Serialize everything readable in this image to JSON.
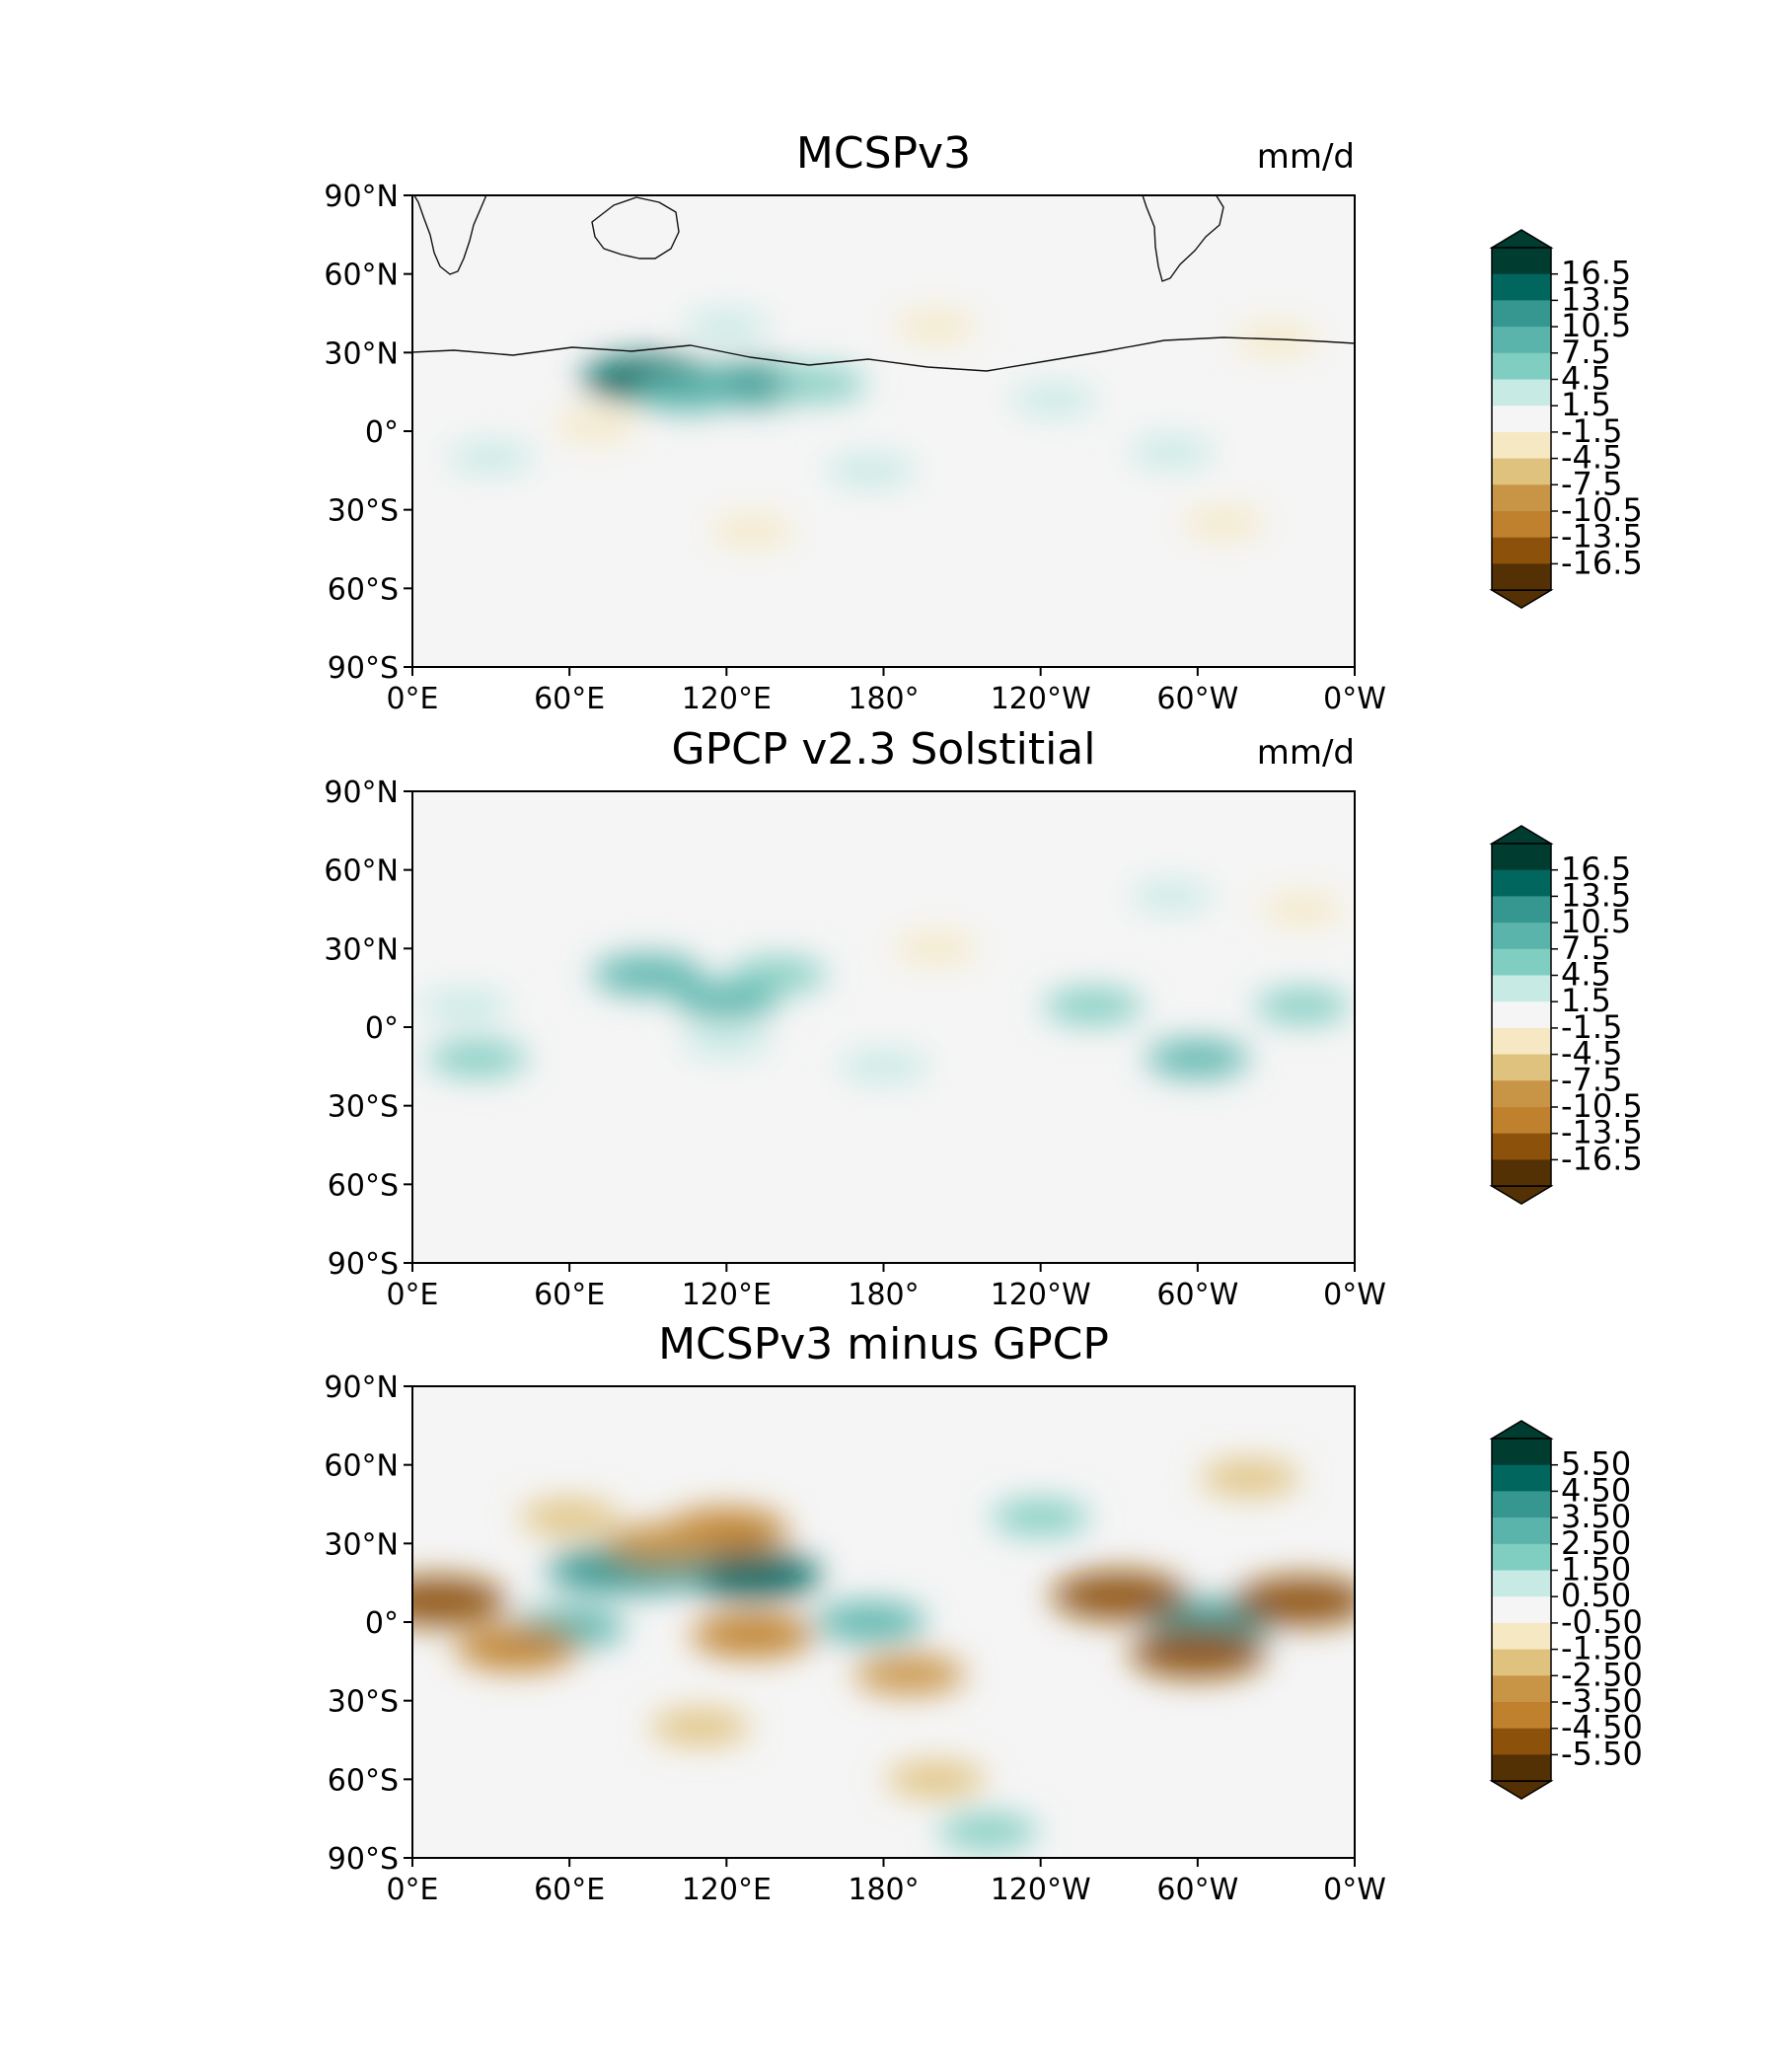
{
  "chart_data": [
    {
      "type": "heatmap",
      "title": "MCSPv3",
      "units_label": "mm/d",
      "x_ticks": [
        "0°E",
        "60°E",
        "120°E",
        "180°",
        "120°W",
        "60°W",
        "0°W"
      ],
      "y_ticks": [
        "90°N",
        "60°N",
        "30°N",
        "0°",
        "30°S",
        "60°S",
        "90°S"
      ],
      "xlim": [
        0,
        360
      ],
      "ylim": [
        -90,
        90
      ],
      "colorbar": {
        "extend": "both",
        "labels": [
          "16.5",
          "13.5",
          "10.5",
          "7.5",
          "4.5",
          "1.5",
          "-1.5",
          "-4.5",
          "-7.5",
          "-10.5",
          "-13.5",
          "-16.5"
        ]
      },
      "anomalies": [
        {
          "lon": 90,
          "lat": 20,
          "value": 14
        },
        {
          "lon": 130,
          "lat": 18,
          "value": 11
        },
        {
          "lon": 105,
          "lat": 15,
          "value": 8
        },
        {
          "lon": 155,
          "lat": 18,
          "value": 5
        },
        {
          "lon": 120,
          "lat": 40,
          "value": 3
        },
        {
          "lon": 175,
          "lat": -15,
          "value": 4
        },
        {
          "lon": 30,
          "lat": -10,
          "value": 3
        },
        {
          "lon": 290,
          "lat": -8,
          "value": 3
        },
        {
          "lon": 245,
          "lat": 12,
          "value": 3
        },
        {
          "lon": 200,
          "lat": 40,
          "value": -2
        },
        {
          "lon": 330,
          "lat": 35,
          "value": -2
        },
        {
          "lon": 310,
          "lat": -35,
          "value": -2
        },
        {
          "lon": 130,
          "lat": -38,
          "value": -2
        },
        {
          "lon": 70,
          "lat": 2,
          "value": -2
        }
      ]
    },
    {
      "type": "heatmap",
      "title": "GPCP v2.3 Solstitial",
      "units_label": "mm/d",
      "x_ticks": [
        "0°E",
        "60°E",
        "120°E",
        "180°",
        "120°W",
        "60°W",
        "0°W"
      ],
      "y_ticks": [
        "90°N",
        "60°N",
        "30°N",
        "0°",
        "30°S",
        "60°S",
        "90°S"
      ],
      "xlim": [
        0,
        360
      ],
      "ylim": [
        -90,
        90
      ],
      "colorbar": {
        "extend": "both",
        "labels": [
          "16.5",
          "13.5",
          "10.5",
          "7.5",
          "4.5",
          "1.5",
          "-1.5",
          "-4.5",
          "-7.5",
          "-10.5",
          "-13.5",
          "-16.5"
        ]
      },
      "anomalies": [
        {
          "lon": 90,
          "lat": 20,
          "value": 9
        },
        {
          "lon": 120,
          "lat": 10,
          "value": 7
        },
        {
          "lon": 140,
          "lat": 20,
          "value": 5
        },
        {
          "lon": 260,
          "lat": 8,
          "value": 6
        },
        {
          "lon": 340,
          "lat": 8,
          "value": 5
        },
        {
          "lon": 300,
          "lat": -12,
          "value": 7
        },
        {
          "lon": 25,
          "lat": -12,
          "value": 6
        },
        {
          "lon": 20,
          "lat": 8,
          "value": 4
        },
        {
          "lon": 180,
          "lat": -15,
          "value": 4
        },
        {
          "lon": 120,
          "lat": -5,
          "value": 4
        },
        {
          "lon": 200,
          "lat": 30,
          "value": -2
        },
        {
          "lon": 340,
          "lat": 45,
          "value": -2
        },
        {
          "lon": 290,
          "lat": 50,
          "value": 2
        }
      ]
    },
    {
      "type": "heatmap",
      "title": "MCSPv3 minus GPCP",
      "units_label": "",
      "x_ticks": [
        "0°E",
        "60°E",
        "120°E",
        "180°",
        "120°W",
        "60°W",
        "0°W"
      ],
      "y_ticks": [
        "90°N",
        "60°N",
        "30°N",
        "0°",
        "30°S",
        "60°S",
        "90°S"
      ],
      "xlim": [
        0,
        360
      ],
      "ylim": [
        -90,
        90
      ],
      "colorbar": {
        "extend": "both",
        "labels": [
          "5.50",
          "4.50",
          "3.50",
          "2.50",
          "1.50",
          "0.50",
          "-0.50",
          "-1.50",
          "-2.50",
          "-3.50",
          "-4.50",
          "-5.50"
        ]
      },
      "anomalies": [
        {
          "lon": 130,
          "lat": 18,
          "value": 5
        },
        {
          "lon": 75,
          "lat": 20,
          "value": 4
        },
        {
          "lon": 90,
          "lat": 20,
          "value": 4
        },
        {
          "lon": 60,
          "lat": -2,
          "value": 3
        },
        {
          "lon": 175,
          "lat": 0,
          "value": 3
        },
        {
          "lon": 305,
          "lat": 0,
          "value": 4
        },
        {
          "lon": 240,
          "lat": 40,
          "value": 2
        },
        {
          "lon": 270,
          "lat": 10,
          "value": -5
        },
        {
          "lon": 340,
          "lat": 8,
          "value": -5
        },
        {
          "lon": 10,
          "lat": 8,
          "value": -5
        },
        {
          "lon": 300,
          "lat": -12,
          "value": -5
        },
        {
          "lon": 40,
          "lat": -10,
          "value": -4
        },
        {
          "lon": 130,
          "lat": -5,
          "value": -4
        },
        {
          "lon": 120,
          "lat": 35,
          "value": -4
        },
        {
          "lon": 95,
          "lat": 30,
          "value": -3
        },
        {
          "lon": 190,
          "lat": -20,
          "value": -3
        },
        {
          "lon": 110,
          "lat": -40,
          "value": -2
        },
        {
          "lon": 200,
          "lat": -60,
          "value": -2
        },
        {
          "lon": 60,
          "lat": 40,
          "value": -2
        },
        {
          "lon": 320,
          "lat": 55,
          "value": -2
        },
        {
          "lon": 220,
          "lat": -80,
          "value": 2
        }
      ]
    }
  ]
}
